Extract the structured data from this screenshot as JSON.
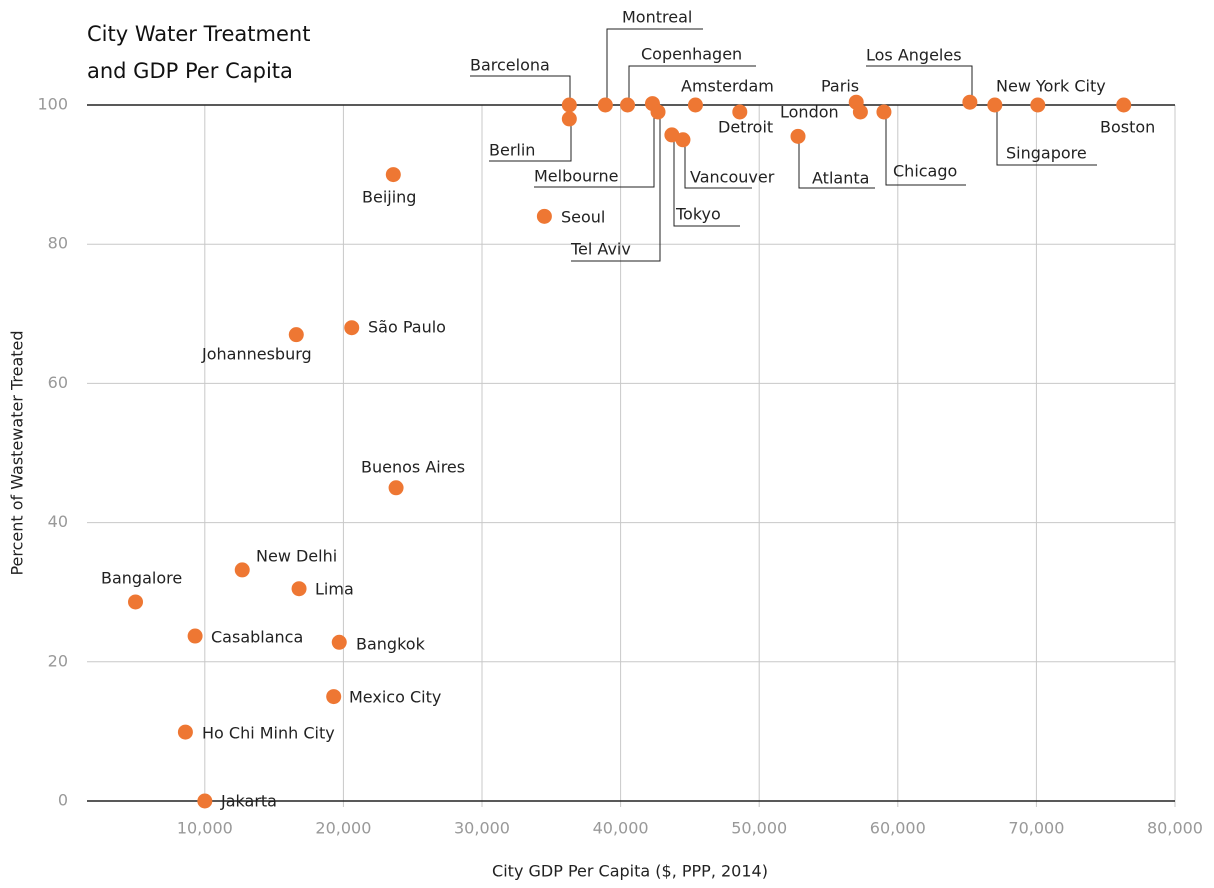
{
  "chart_data": {
    "type": "scatter",
    "title": [
      "City Water Treatment",
      "and GDP Per Capita"
    ],
    "x_label": "City GDP Per Capita ($, PPP, 2014)",
    "y_label": "Percent of Wastewater Treated",
    "color": "#ee7733",
    "labels": [
      "Barcelona",
      "Berlin",
      "Montreal",
      "Copenhagen",
      "Melbourne",
      "Tel Aviv",
      "Tokyo",
      "Vancouver",
      "Amsterdam",
      "Detroit",
      "Atlanta",
      "Paris",
      "London",
      "Chicago",
      "Los Angeles",
      "Singapore",
      "New York City",
      "Boston",
      "Beijing",
      "Seoul",
      "São Paulo",
      "Johannesburg",
      "Buenos Aires",
      "New Delhi",
      "Lima",
      "Bangalore",
      "Casablanca",
      "Bangkok",
      "Mexico City",
      "Ho Chi Minh City",
      "Jakarta"
    ],
    "x": [
      36300,
      36300,
      38900,
      40500,
      42300,
      42700,
      43700,
      44500,
      45400,
      48600,
      52800,
      57000,
      57300,
      59000,
      65200,
      67000,
      70100,
      76300,
      23600,
      34500,
      20600,
      16600,
      23800,
      12700,
      16800,
      5000,
      9300,
      19700,
      19300,
      8600,
      10000
    ],
    "values": [
      100,
      98,
      100,
      100,
      100.2,
      99,
      95.7,
      95,
      100,
      99,
      95.5,
      100.4,
      99,
      99,
      100.4,
      100,
      100,
      100,
      90,
      84,
      68,
      67,
      45,
      33.2,
      30.5,
      28.6,
      23.7,
      22.8,
      15,
      9.9,
      0
    ],
    "xlim": [
      1500,
      80000
    ],
    "ylim": [
      0,
      100
    ],
    "xticks": [
      {
        "value": 10000,
        "label": "10,000"
      },
      {
        "value": 20000,
        "label": "20,000"
      },
      {
        "value": 30000,
        "label": "30,000"
      },
      {
        "value": 40000,
        "label": "40,000"
      },
      {
        "value": 50000,
        "label": "50,000"
      },
      {
        "value": 60000,
        "label": "60,000"
      },
      {
        "value": 70000,
        "label": "70,000"
      },
      {
        "value": 80000,
        "label": "80,000"
      }
    ],
    "yticks": [
      0,
      20,
      40,
      60,
      80,
      100
    ],
    "grid": true
  }
}
